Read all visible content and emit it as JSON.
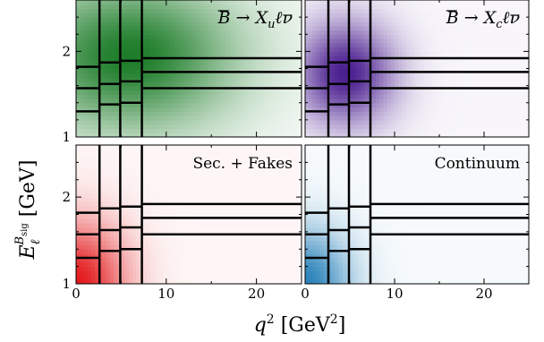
{
  "figure": {
    "xlabel_main": "q",
    "xlabel_sup": "2",
    "xlabel_unit_open": " [GeV",
    "xlabel_unit_sup": "2",
    "xlabel_unit_close": "]",
    "ylabel_main": "E",
    "ylabel_sub": "ℓ",
    "ylabel_sup": "B",
    "ylabel_supsub": "sig",
    "ylabel_unit": " [GeV]"
  },
  "colors": {
    "background": "#ffffff",
    "grid_lines": "#000000",
    "panel_b_xu": "#1e7d2a",
    "panel_b_xc": "#4b1f8f",
    "panel_sec_fakes": "#e31a1c",
    "panel_continuum": "#2b83ba"
  },
  "chart_data": [
    {
      "type": "heatmap",
      "title": "B̅ → X_u ℓ ν̅",
      "title_parts": {
        "b": "B",
        "arrow": " → ",
        "x": "X",
        "xsub": "u",
        "rest": "ℓν"
      },
      "xlim": [
        0,
        25
      ],
      "ylim": [
        1,
        2.6
      ],
      "x_ticks": [
        0,
        10,
        20
      ],
      "y_ticks": [
        1,
        2
      ],
      "bin_edges_q2": [
        0,
        2.6,
        4.9,
        7.3,
        25
      ],
      "bin_edges_E": [
        1.0,
        1.3,
        1.6,
        1.8,
        1.9,
        2.0,
        2.6
      ],
      "density_peak": {
        "q2": 6.0,
        "E": 1.95
      },
      "density_spread": {
        "q2": 7.5,
        "E": 0.55
      },
      "color": "#1e7d2a"
    },
    {
      "type": "heatmap",
      "title": "B̅ → X_c ℓ ν̅",
      "title_parts": {
        "b": "B",
        "arrow": " → ",
        "x": "X",
        "xsub": "c",
        "rest": "ℓν"
      },
      "xlim": [
        0,
        25
      ],
      "ylim": [
        1,
        2.6
      ],
      "x_ticks": [
        0,
        10,
        20
      ],
      "y_ticks": [
        1,
        2
      ],
      "bin_edges_q2": [
        0,
        2.6,
        4.9,
        7.3,
        25
      ],
      "bin_edges_E": [
        1.0,
        1.3,
        1.6,
        1.8,
        1.9,
        2.0,
        2.6
      ],
      "density_peak": {
        "q2": 4.5,
        "E": 1.75
      },
      "density_spread": {
        "q2": 3.5,
        "E": 0.38
      },
      "color": "#4b1f8f"
    },
    {
      "type": "heatmap",
      "title": "Sec. + Fakes",
      "xlim": [
        0,
        25
      ],
      "ylim": [
        1,
        2.6
      ],
      "x_ticks": [
        0,
        10,
        20
      ],
      "y_ticks": [
        1,
        2
      ],
      "x_tick_labels": [
        "0",
        "10",
        "20"
      ],
      "y_tick_labels": [
        "1",
        "2"
      ],
      "bin_edges_q2": [
        0,
        2.6,
        4.9,
        7.3,
        25
      ],
      "bin_edges_E": [
        1.0,
        1.3,
        1.6,
        1.8,
        1.9,
        2.0,
        2.6
      ],
      "density_peak": {
        "q2": 0.0,
        "E": 1.0
      },
      "density_spread": {
        "q2": 3.5,
        "E": 0.45
      },
      "color": "#e31a1c"
    },
    {
      "type": "heatmap",
      "title": "Continuum",
      "xlim": [
        0,
        25
      ],
      "ylim": [
        1,
        2.6
      ],
      "x_ticks": [
        0,
        10,
        20
      ],
      "y_ticks": [
        1,
        2
      ],
      "x_tick_labels": [
        "0",
        "10",
        "20"
      ],
      "bin_edges_q2": [
        0,
        2.6,
        4.9,
        7.3,
        25
      ],
      "bin_edges_E": [
        1.0,
        1.3,
        1.6,
        1.8,
        1.9,
        2.0,
        2.6
      ],
      "density_peak": {
        "q2": 0.0,
        "E": 1.0
      },
      "density_spread": {
        "q2": 3.2,
        "E": 0.4
      },
      "color": "#2b83ba"
    }
  ]
}
